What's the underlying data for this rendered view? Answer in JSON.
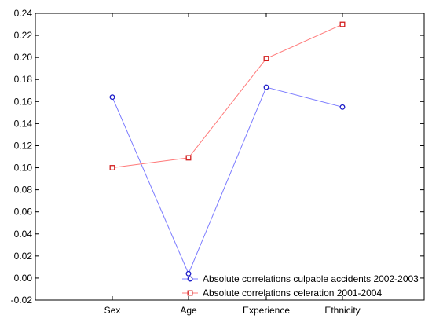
{
  "chart_data": {
    "type": "line",
    "categories": [
      "Sex",
      "Age",
      "Experience",
      "Ethnicity"
    ],
    "ylim": [
      -0.02,
      0.24
    ],
    "yticks": [
      "-0.02",
      "0.00",
      "0.02",
      "0.04",
      "0.06",
      "0.08",
      "0.10",
      "0.12",
      "0.14",
      "0.16",
      "0.18",
      "0.20",
      "0.22",
      "0.24"
    ],
    "grid": false,
    "legend_position": "bottom-right",
    "series": [
      {
        "name": "Absolute correlations culpable accidents 2002-2003",
        "values": [
          0.164,
          0.004,
          0.173,
          0.155
        ],
        "color": "#7b7bff",
        "marker_color": "#1b1bc8",
        "marker": "circle"
      },
      {
        "name": "Absolute correlations celeration 2001-2004",
        "values": [
          0.1,
          0.109,
          0.199,
          0.23
        ],
        "color": "#ff7b7b",
        "marker_color": "#d21e1e",
        "marker": "square"
      }
    ]
  }
}
